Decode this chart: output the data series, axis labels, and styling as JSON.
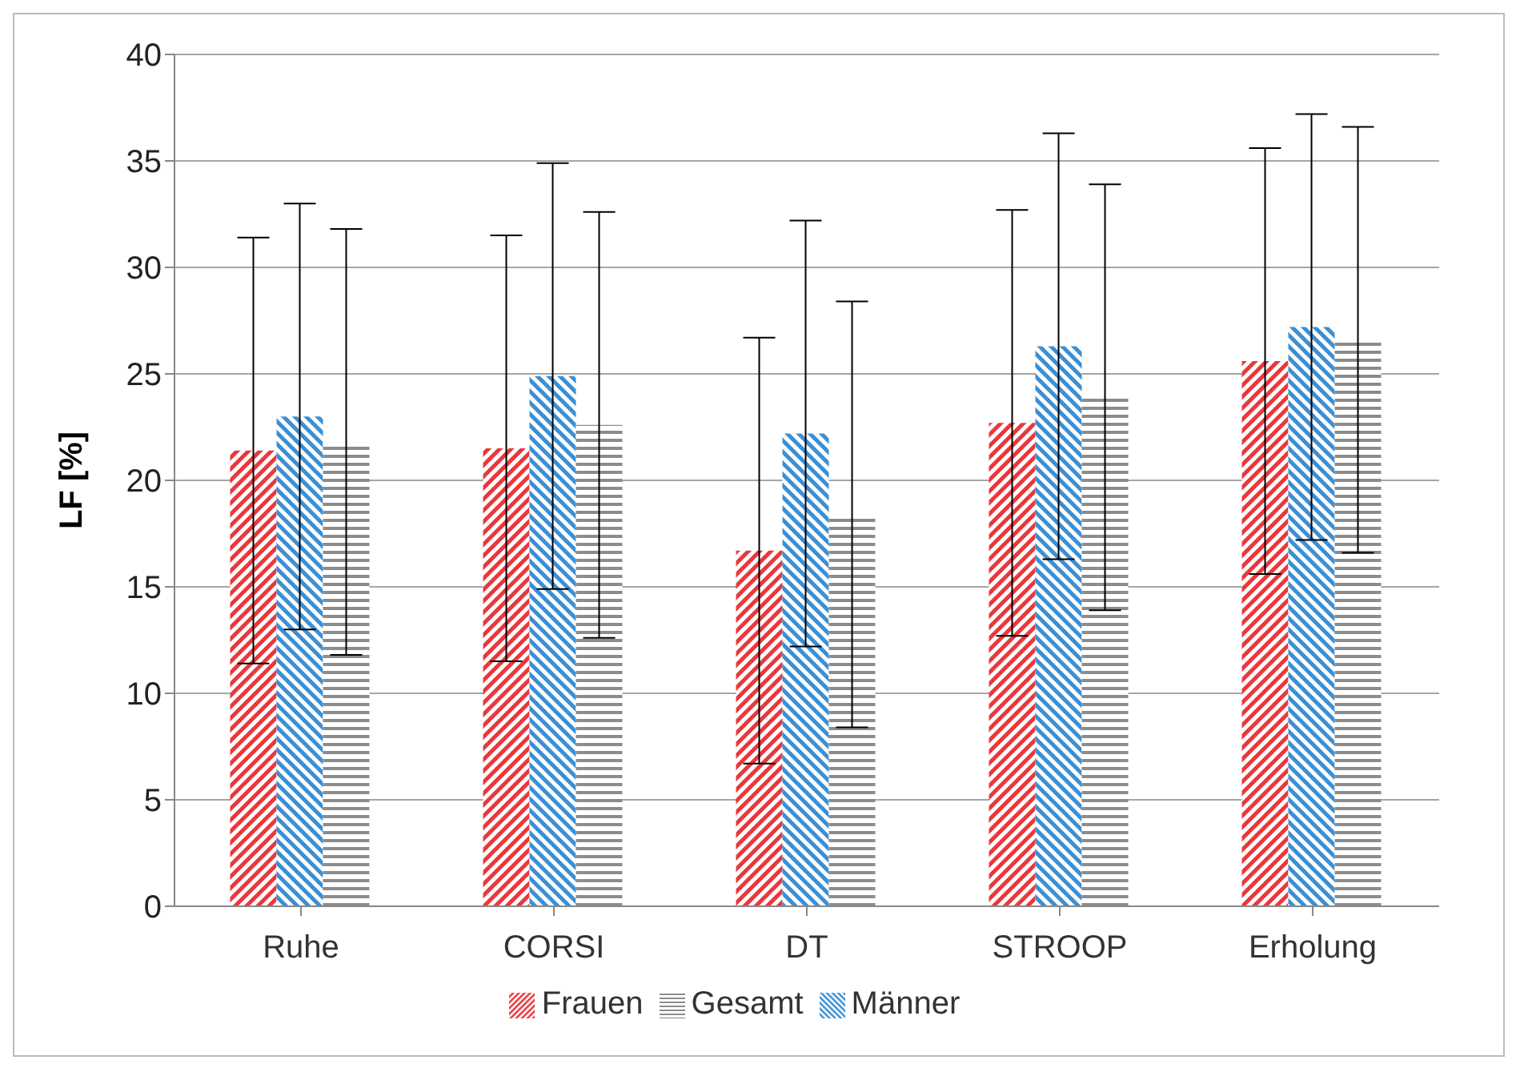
{
  "chart_data": {
    "type": "bar",
    "ylabel": "LF [%]",
    "categories": [
      "Ruhe",
      "CORSI",
      "DT",
      "STROOP",
      "Erholung"
    ],
    "series": [
      {
        "name": "Frauen",
        "color": "#e8383c",
        "values": [
          21.4,
          21.5,
          16.7,
          22.7,
          25.6
        ],
        "errors": [
          10,
          10,
          10,
          10,
          10
        ]
      },
      {
        "name": "Männer",
        "color": "#3b8fd4",
        "values": [
          23.0,
          24.9,
          22.2,
          26.3,
          27.2
        ],
        "errors": [
          10,
          10,
          10,
          10,
          10
        ]
      },
      {
        "name": "Gesamt",
        "color": "#8c8c8c",
        "values": [
          21.8,
          22.6,
          18.4,
          23.9,
          26.6
        ],
        "errors": [
          10,
          10,
          10,
          10,
          10
        ]
      }
    ],
    "ylim": [
      0,
      40
    ],
    "yticks": [
      0,
      5,
      10,
      15,
      20,
      25,
      30,
      35,
      40
    ],
    "grid": "y",
    "legend": "bottom"
  }
}
